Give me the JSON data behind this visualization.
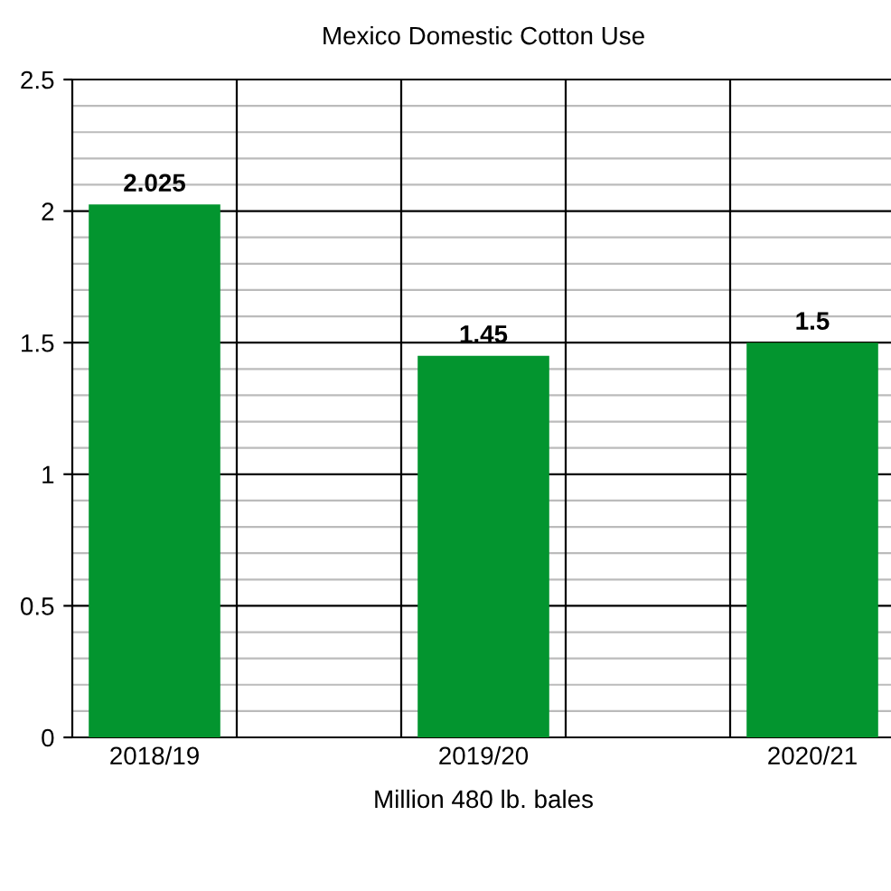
{
  "chart_data": {
    "type": "bar",
    "title": "Mexico Domestic Cotton Use",
    "xlabel": "Million 480 lb. bales",
    "categories": [
      "2018/19",
      null,
      "2019/20",
      null,
      "2020/21"
    ],
    "values": [
      2.025,
      null,
      1.45,
      null,
      1.5
    ],
    "color": "#03952f",
    "value_labels": [
      "2.025",
      null,
      "1.45",
      null,
      "1.5"
    ],
    "ylim": [
      0,
      2.5
    ],
    "yticks": [
      0,
      0.5,
      1,
      1.5,
      2,
      2.5
    ],
    "grid": true
  }
}
